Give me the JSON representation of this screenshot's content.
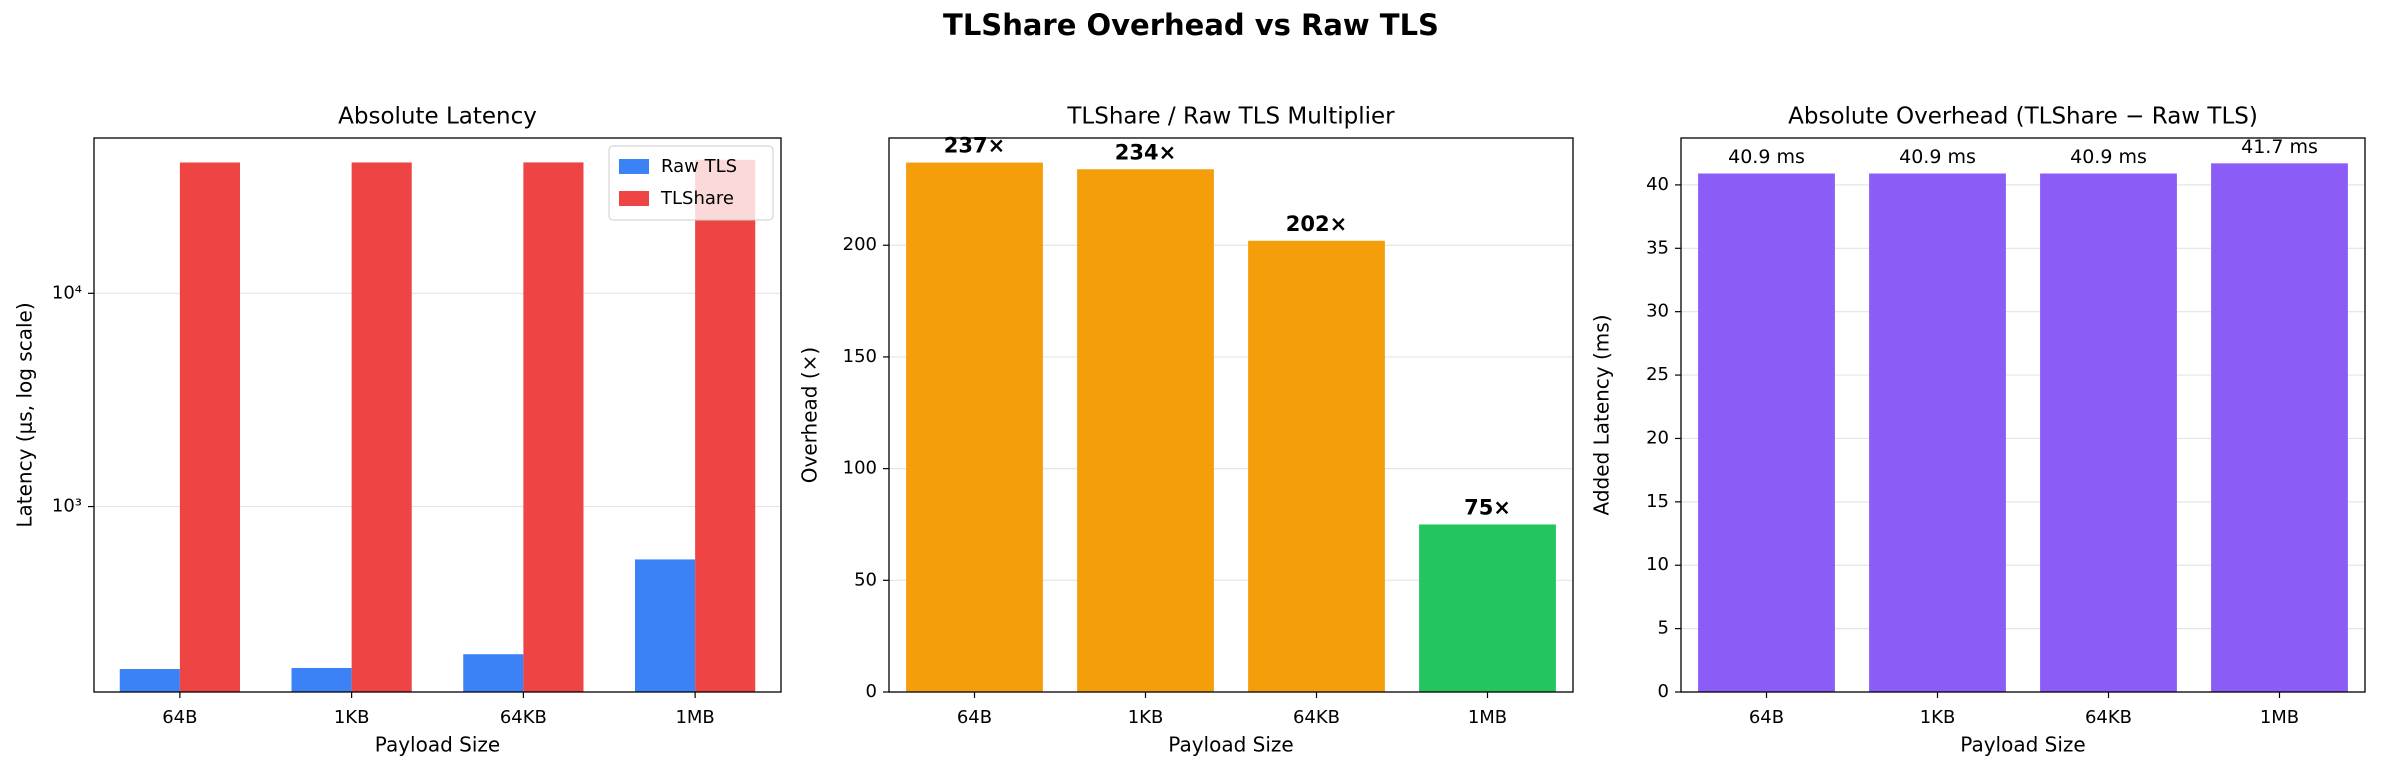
{
  "title": "TLShare Overhead vs Raw TLS",
  "chart_data": [
    {
      "type": "bar",
      "title": "Absolute Latency",
      "xlabel": "Payload Size",
      "ylabel": "Latency (μs, log scale)",
      "categories": [
        "64B",
        "1KB",
        "64KB",
        "1MB"
      ],
      "series": [
        {
          "name": "Raw TLS",
          "color": "#3b82f6",
          "values": [
            173,
            175,
            203,
            565
          ]
        },
        {
          "name": "TLShare",
          "color": "#ef4444",
          "values": [
            41073,
            41075,
            41103,
            42265
          ]
        }
      ],
      "log_scale": true,
      "ylim": [
        135,
        53500
      ],
      "yticks": [
        {
          "value": 1000,
          "label": "10³"
        },
        {
          "value": 10000,
          "label": "10⁴"
        }
      ],
      "grid": true,
      "legend": "upper right"
    },
    {
      "type": "bar",
      "title": "TLShare / Raw TLS Multiplier",
      "xlabel": "Payload Size",
      "ylabel": "Overhead (×)",
      "categories": [
        "64B",
        "1KB",
        "64KB",
        "1MB"
      ],
      "values": [
        237,
        234,
        202,
        75
      ],
      "value_labels": [
        "237×",
        "234×",
        "202×",
        "75×"
      ],
      "colors": [
        "#f59e0b",
        "#f59e0b",
        "#f59e0b",
        "#22c55e"
      ],
      "ylim": [
        0,
        248
      ],
      "yticks": [
        0,
        50,
        100,
        150,
        200
      ],
      "grid": true
    },
    {
      "type": "bar",
      "title": "Absolute Overhead (TLShare − Raw TLS)",
      "xlabel": "Payload Size",
      "ylabel": "Added Latency (ms)",
      "categories": [
        "64B",
        "1KB",
        "64KB",
        "1MB"
      ],
      "values": [
        40.9,
        40.9,
        40.9,
        41.7
      ],
      "value_labels": [
        "40.9 ms",
        "40.9 ms",
        "40.9 ms",
        "41.7 ms"
      ],
      "color": "#8b5cf6",
      "ylim": [
        0,
        43.7
      ],
      "yticks": [
        0,
        5,
        10,
        15,
        20,
        25,
        30,
        35,
        40
      ],
      "grid": true
    }
  ]
}
